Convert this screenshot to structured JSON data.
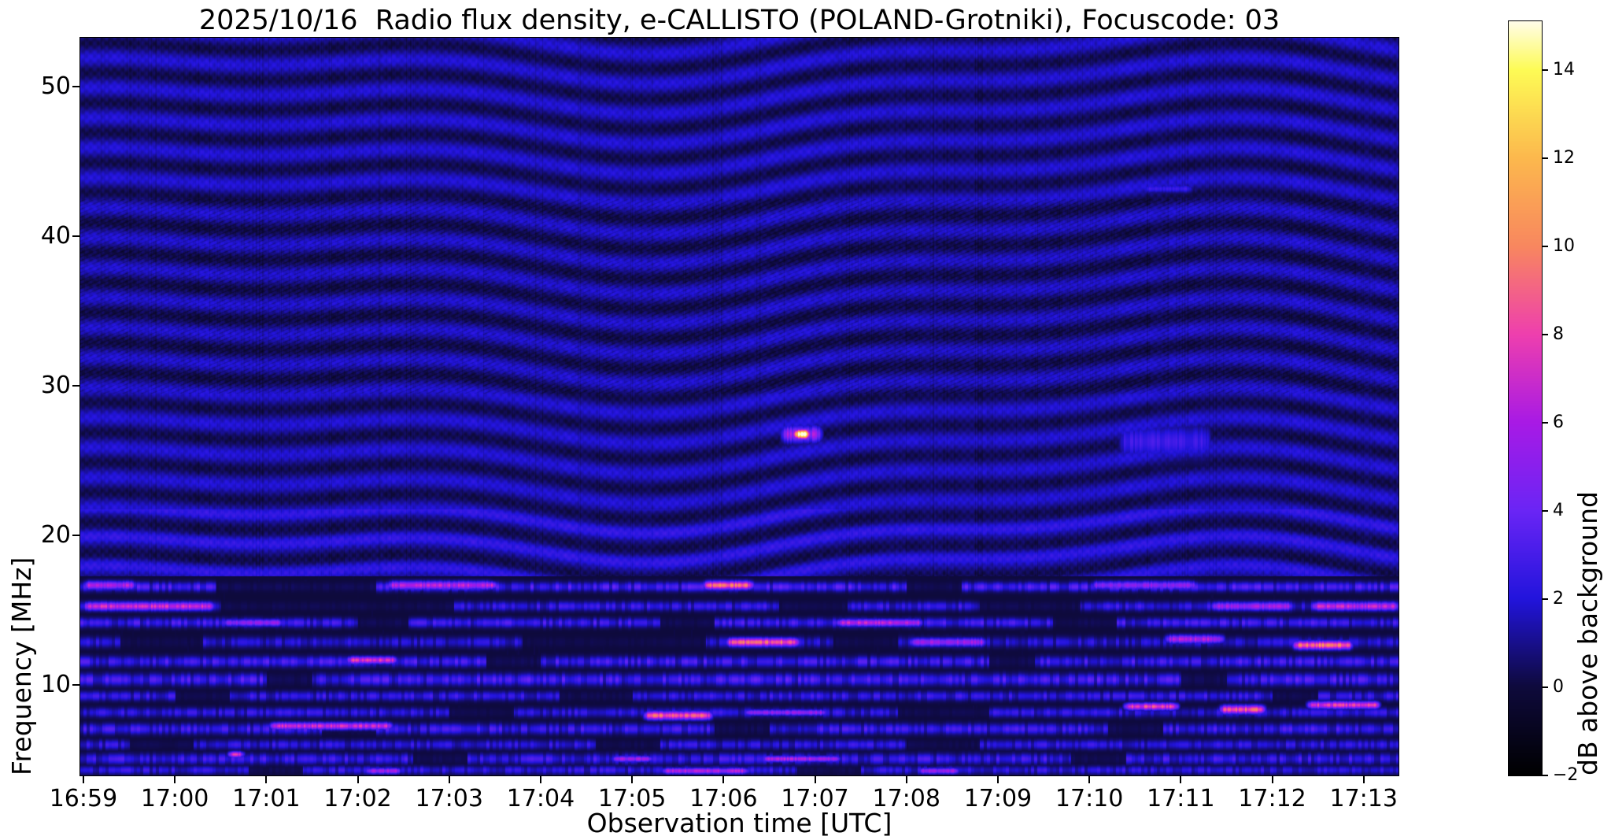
{
  "chart_data": {
    "type": "heatmap",
    "title": "2025/10/16  Radio flux density, e-CALLISTO (POLAND-Grotniki), Focuscode: 03",
    "xlabel": "Observation time [UTC]",
    "ylabel": "Frequency [MHz]",
    "x_axis": {
      "start_min": -0.034,
      "end_min": 14.381,
      "tick_minutes": [
        0,
        1,
        2,
        3,
        4,
        5,
        6,
        7,
        8,
        9,
        10,
        11,
        12,
        13,
        14
      ],
      "tick_labels": [
        "16:59",
        "17:00",
        "17:01",
        "17:02",
        "17:03",
        "17:04",
        "17:05",
        "17:06",
        "17:07",
        "17:08",
        "17:09",
        "17:10",
        "17:11",
        "17:12",
        "17:13"
      ]
    },
    "y_axis": {
      "min_mhz": 3.97,
      "max_mhz": 53.26,
      "ticks": [
        50,
        40,
        30,
        20,
        10
      ],
      "tick_labels": [
        "50",
        "40",
        "30",
        "20",
        "10"
      ]
    },
    "colorbar": {
      "label": "dB above background",
      "range": [
        -2,
        15.1
      ],
      "ticks": [
        14,
        12,
        10,
        8,
        6,
        4,
        2,
        0,
        -2
      ],
      "tick_labels": [
        "14",
        "12",
        "10",
        "8",
        "6",
        "4",
        "2",
        "0",
        "−2"
      ],
      "colormap": [
        [
          -2,
          "#000000"
        ],
        [
          0,
          "#0e0a3c"
        ],
        [
          2,
          "#2214dc"
        ],
        [
          4,
          "#6a25f5"
        ],
        [
          6,
          "#a81ae5"
        ],
        [
          8,
          "#ee3fae"
        ],
        [
          10,
          "#f8875f"
        ],
        [
          12,
          "#fcb84d"
        ],
        [
          14,
          "#fdfb55"
        ],
        [
          15.1,
          "#fffce8"
        ]
      ]
    },
    "burst": {
      "time_utc": "17:06:50",
      "freq_mhz": 26.8,
      "peak_db": 14
    },
    "texture": {
      "seed": 1337,
      "base_db": 1.12,
      "ripple_amp": 0.85,
      "ripple_fy": 0.165,
      "warp1_amp": 3.1,
      "warp1_fx": 0.0052,
      "warp2_amp": 1.6,
      "warp2_fx": 0.0124,
      "tilt": 0.004,
      "mottle_amp": 0.3,
      "hatch": {
        "f_min": 29.5,
        "f_max": 42.5,
        "amp": 0.62,
        "fx": 0.52,
        "fy": 1.25
      },
      "arc_boost": {
        "f_min": 17.3,
        "f_max": 21.8,
        "amp": 0.55
      },
      "lower_f_max": 17.3,
      "lower_base_db": -1.15,
      "lower_stripe_amp": 1.3
    },
    "bands": [
      {
        "f": 16.6,
        "h": 4,
        "base": 3.1,
        "gaps": [
          [
            1.45,
            3.2
          ],
          [
            9.0,
            9.6
          ]
        ]
      },
      {
        "f": 15.3,
        "h": 4,
        "base": 2.5,
        "gaps": [
          [
            1.5,
            4.05
          ],
          [
            7.6,
            8.35
          ],
          [
            9.8,
            10.9
          ]
        ]
      },
      {
        "f": 14.2,
        "h": 4,
        "base": 2.8,
        "gaps": [
          [
            3.0,
            3.55
          ],
          [
            6.3,
            6.9
          ],
          [
            10.6,
            11.3
          ]
        ]
      },
      {
        "f": 12.9,
        "h": 4.5,
        "base": 2.1,
        "gaps": [
          [
            0.4,
            1.3
          ],
          [
            4.8,
            6.8
          ],
          [
            8.2,
            8.9
          ]
        ]
      },
      {
        "f": 11.6,
        "h": 4.5,
        "base": 2.9,
        "gaps": [
          [
            4.4,
            5.0
          ],
          [
            9.9,
            10.4
          ]
        ]
      },
      {
        "f": 10.4,
        "h": 5,
        "base": 3.1,
        "gaps": [
          [
            2.0,
            2.5
          ],
          [
            12.0,
            12.5
          ]
        ]
      },
      {
        "f": 9.3,
        "h": 4,
        "base": 2.5,
        "gaps": [
          [
            1.0,
            1.6
          ],
          [
            5.2,
            6.0
          ],
          [
            13.0,
            13.5
          ]
        ]
      },
      {
        "f": 8.2,
        "h": 4,
        "base": 2.3,
        "gaps": [
          [
            4.0,
            4.7
          ],
          [
            8.9,
            9.9
          ]
        ]
      },
      {
        "f": 7.1,
        "h": 4.5,
        "base": 2.8,
        "gaps": [
          [
            2.6,
            3.2
          ],
          [
            6.9,
            7.5
          ],
          [
            11.2,
            11.8
          ]
        ]
      },
      {
        "f": 6.05,
        "h": 4,
        "base": 2.3,
        "gaps": [
          [
            0.5,
            1.2
          ],
          [
            5.6,
            6.3
          ],
          [
            9.0,
            9.8
          ]
        ]
      },
      {
        "f": 5.1,
        "h": 4.5,
        "base": 2.7,
        "gaps": [
          [
            3.6,
            4.2
          ],
          [
            10.8,
            11.4
          ]
        ]
      },
      {
        "f": 4.35,
        "h": 3.5,
        "base": 2.4,
        "gaps": [
          [
            1.8,
            2.4
          ],
          [
            7.8,
            8.5
          ]
        ]
      }
    ],
    "streaks": [
      [
        7.72,
        7.97,
        26.8,
        14.3,
        4
      ],
      [
        7.6,
        8.1,
        26.8,
        5.5,
        7
      ],
      [
        11.3,
        12.35,
        26.3,
        2.7,
        14
      ],
      [
        11.55,
        12.15,
        43.2,
        2.6,
        3.5
      ],
      [
        -0.03,
        0.6,
        16.7,
        6.0,
        3.5
      ],
      [
        3.3,
        4.5,
        16.7,
        6.3,
        3.5
      ],
      [
        6.75,
        7.35,
        16.7,
        9.0,
        3.5
      ],
      [
        11.0,
        12.2,
        16.7,
        5.0,
        3.5
      ],
      [
        4.35,
        4.55,
        16.7,
        6.5,
        3.0
      ],
      [
        -0.03,
        1.45,
        15.3,
        6.8,
        3.5
      ],
      [
        12.3,
        13.25,
        15.3,
        5.6,
        3.5
      ],
      [
        13.4,
        14.4,
        15.3,
        6.5,
        3.5
      ],
      [
        1.5,
        2.2,
        14.2,
        5.0,
        3
      ],
      [
        8.2,
        9.2,
        14.2,
        6.5,
        3
      ],
      [
        7.0,
        7.85,
        12.9,
        9.0,
        3.5
      ],
      [
        9.0,
        9.9,
        12.9,
        5.5,
        3.5
      ],
      [
        11.8,
        12.5,
        13.1,
        6.0,
        3.5
      ],
      [
        13.2,
        13.9,
        12.7,
        9.5,
        3.5
      ],
      [
        2.85,
        3.45,
        11.7,
        7.5,
        3
      ],
      [
        2.0,
        3.4,
        7.3,
        6.8,
        3
      ],
      [
        6.1,
        6.9,
        8.0,
        8.6,
        3.5
      ],
      [
        7.2,
        8.15,
        8.2,
        5.2,
        2.5
      ],
      [
        11.35,
        12.0,
        8.6,
        7.8,
        3
      ],
      [
        12.4,
        12.95,
        8.4,
        8.6,
        3.5
      ],
      [
        13.35,
        14.2,
        8.7,
        7.8,
        3
      ],
      [
        1.55,
        1.78,
        5.4,
        7.0,
        2.5
      ],
      [
        5.75,
        6.25,
        5.1,
        5.5,
        2.5
      ],
      [
        7.4,
        8.3,
        5.1,
        6.0,
        2.5
      ],
      [
        3.05,
        3.5,
        4.3,
        5.5,
        2.5
      ],
      [
        6.3,
        7.3,
        4.3,
        6.0,
        2.5
      ],
      [
        9.1,
        9.6,
        4.3,
        5.5,
        2.5
      ]
    ]
  }
}
